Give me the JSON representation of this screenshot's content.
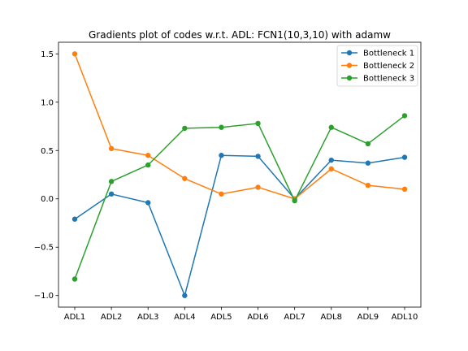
{
  "chart_data": {
    "type": "line",
    "title": "Gradients plot of codes w.r.t. ADL: FCN1(10,3,10) with adamw",
    "xlabel": "",
    "ylabel": "",
    "categories": [
      "ADL1",
      "ADL2",
      "ADL3",
      "ADL4",
      "ADL5",
      "ADL6",
      "ADL7",
      "ADL8",
      "ADL9",
      "ADL10"
    ],
    "ylim": [
      -1.12,
      1.62
    ],
    "yticks": [
      -1.0,
      -0.5,
      0.0,
      0.5,
      1.0,
      1.5
    ],
    "ytick_labels": [
      "−1.0",
      "−0.5",
      "0.0",
      "0.5",
      "1.0",
      "1.5"
    ],
    "grid": false,
    "legend_position": "top-right",
    "series": [
      {
        "name": "Bottleneck 1",
        "color": "#1f77b4",
        "marker": "circle",
        "values": [
          -0.21,
          0.05,
          -0.04,
          -1.0,
          0.45,
          0.44,
          0.0,
          0.4,
          0.37,
          0.43
        ]
      },
      {
        "name": "Bottleneck 2",
        "color": "#ff7f0e",
        "marker": "circle",
        "values": [
          1.5,
          0.52,
          0.45,
          0.21,
          0.05,
          0.12,
          0.0,
          0.31,
          0.14,
          0.1
        ]
      },
      {
        "name": "Bottleneck 3",
        "color": "#2ca02c",
        "marker": "circle",
        "values": [
          -0.83,
          0.18,
          0.35,
          0.73,
          0.74,
          0.78,
          -0.02,
          0.74,
          0.57,
          0.86
        ]
      }
    ]
  }
}
